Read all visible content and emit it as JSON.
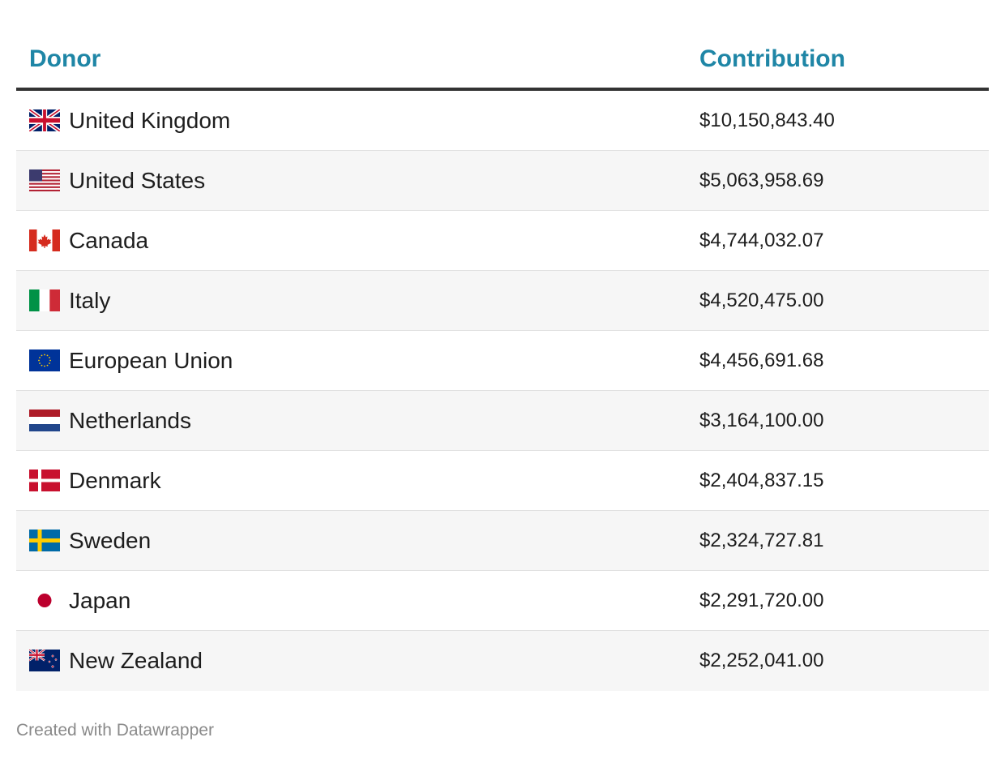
{
  "chart_data": {
    "type": "table",
    "columns": [
      "Donor",
      "Contribution"
    ],
    "rows": [
      {
        "donor": "United Kingdom",
        "flag": "uk-flag",
        "contribution": "$10,150,843.40"
      },
      {
        "donor": "United States",
        "flag": "us-flag",
        "contribution": "$5,063,958.69"
      },
      {
        "donor": "Canada",
        "flag": "canada-flag",
        "contribution": "$4,744,032.07"
      },
      {
        "donor": "Italy",
        "flag": "italy-flag",
        "contribution": "$4,520,475.00"
      },
      {
        "donor": "European Union",
        "flag": "eu-flag",
        "contribution": "$4,456,691.68"
      },
      {
        "donor": "Netherlands",
        "flag": "netherlands-flag",
        "contribution": "$3,164,100.00"
      },
      {
        "donor": "Denmark",
        "flag": "denmark-flag",
        "contribution": "$2,404,837.15"
      },
      {
        "donor": "Sweden",
        "flag": "sweden-flag",
        "contribution": "$2,324,727.81"
      },
      {
        "donor": "Japan",
        "flag": "japan-flag",
        "contribution": "$2,291,720.00"
      },
      {
        "donor": "New Zealand",
        "flag": "new-zealand-flag",
        "contribution": "$2,252,041.00"
      }
    ]
  },
  "footer": "Created with Datawrapper",
  "colors": {
    "header_text": "#1f86a6",
    "header_rule": "#333333",
    "alt_row": "#f6f6f6"
  }
}
